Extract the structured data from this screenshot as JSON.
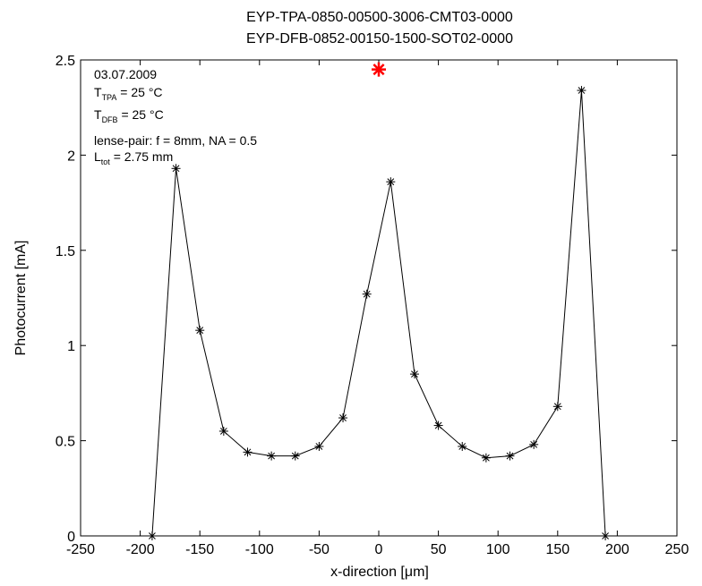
{
  "chart_data": {
    "type": "line",
    "title_lines": [
      "EYP-TPA-0850-00500-3006-CMT03-0000",
      "EYP-DFB-0852-00150-1500-SOT02-0000"
    ],
    "xlabel": "x-direction [μm]",
    "ylabel": "Photocurrent [mA]",
    "xlim": [
      -250,
      250
    ],
    "ylim": [
      0,
      2.5
    ],
    "xticks": [
      -250,
      -200,
      -150,
      -100,
      -50,
      0,
      50,
      100,
      150,
      200,
      250
    ],
    "yticks": [
      0,
      0.5,
      1,
      1.5,
      2,
      2.5
    ],
    "ytick_labels": [
      "0",
      "0.5",
      "1",
      "1.5",
      "2",
      "2.5"
    ],
    "grid": false,
    "series": [
      {
        "color": "#000000",
        "marker": "*",
        "x": [
          -190,
          -170,
          -150,
          -130,
          -110,
          -90,
          -70,
          -50,
          -30,
          -10,
          10,
          30,
          50,
          70,
          90,
          110,
          130,
          150,
          170,
          190
        ],
        "y": [
          0,
          1.93,
          1.08,
          0.55,
          0.44,
          0.42,
          0.42,
          0.47,
          0.62,
          1.27,
          1.86,
          0.85,
          0.58,
          0.47,
          0.41,
          0.42,
          0.48,
          0.68,
          2.34,
          0
        ]
      }
    ],
    "highlight_point": {
      "x": 0,
      "y": 2.45,
      "color": "#ff0000",
      "marker": "*"
    },
    "annotations": {
      "date": "03.07.2009",
      "t_tpa": {
        "main": "T",
        "sub": "TPA",
        "rest": " = 25 °C"
      },
      "t_dfb": {
        "main": "T",
        "sub": "DFB",
        "rest": " = 25 °C"
      },
      "lense": "lense-pair: f = 8mm, NA = 0.5",
      "l_tot": {
        "main": "L",
        "sub": "tot",
        "rest": " = 2.75 mm"
      }
    }
  }
}
